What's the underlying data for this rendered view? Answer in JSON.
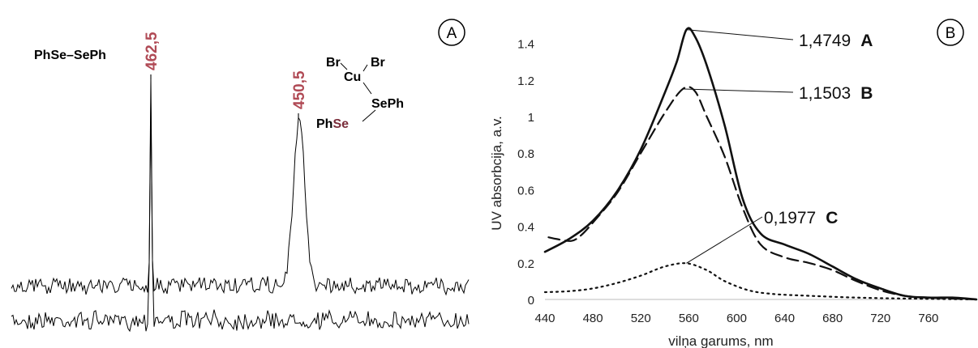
{
  "chart_data": [
    {
      "type": "line",
      "panel_label": "A",
      "title": "",
      "xlabel": "",
      "ylabel": "",
      "peaks": [
        {
          "value_label": "462,5",
          "compound": "PhSe–SePh"
        },
        {
          "value_label": "450,5"
        }
      ],
      "complex": {
        "br1": "Br",
        "br2": "Br",
        "cu": "Cu",
        "seph": "SePh",
        "phse_ph": "Ph",
        "phse_se": "Se"
      },
      "series": [
        {
          "name": "",
          "shape": "noisy spectrum with narrow spike at 462,5"
        },
        {
          "name": "",
          "shape": "noisy spectrum with broad peak at 450,5"
        }
      ]
    },
    {
      "type": "line",
      "panel_label": "B",
      "title": "",
      "xlabel": "vilņa garums, nm",
      "ylabel": "UV absorbcija, a.v.",
      "xlim": [
        440,
        800
      ],
      "ylim": [
        0,
        1.5
      ],
      "x_ticks": [
        "440",
        "480",
        "520",
        "560",
        "600",
        "640",
        "680",
        "720",
        "760"
      ],
      "y_ticks": [
        "0",
        "0.2",
        "0.4",
        "0.6",
        "0.8",
        "1",
        "1.2",
        "1.4"
      ],
      "series": [
        {
          "name": "A",
          "style": "solid",
          "peak_label": "1,4749",
          "x": [
            440,
            460,
            480,
            500,
            520,
            540,
            550,
            558,
            565,
            575,
            590,
            605,
            620,
            640,
            660,
            680,
            700,
            720,
            740,
            760,
            780,
            800
          ],
          "y": [
            0.26,
            0.33,
            0.43,
            0.59,
            0.82,
            1.13,
            1.3,
            1.4749,
            1.44,
            1.28,
            0.95,
            0.55,
            0.36,
            0.3,
            0.25,
            0.18,
            0.11,
            0.06,
            0.02,
            0.01,
            0.01,
            0.0
          ]
        },
        {
          "name": "B",
          "style": "dashed",
          "peak_label": "1,1503",
          "x": [
            443,
            450,
            462,
            470,
            480,
            500,
            520,
            540,
            555,
            565,
            575,
            590,
            605,
            620,
            640,
            660,
            680,
            700,
            720,
            740,
            760,
            800
          ],
          "y": [
            0.34,
            0.33,
            0.32,
            0.35,
            0.42,
            0.58,
            0.8,
            1.02,
            1.1503,
            1.14,
            1.0,
            0.78,
            0.5,
            0.3,
            0.23,
            0.2,
            0.16,
            0.1,
            0.05,
            0.02,
            0.01,
            0.0
          ]
        },
        {
          "name": "C",
          "style": "dotted",
          "peak_label": "0,1977",
          "x": [
            440,
            460,
            480,
            500,
            520,
            540,
            558,
            575,
            590,
            610,
            630,
            660,
            700,
            740,
            800
          ],
          "y": [
            0.04,
            0.045,
            0.06,
            0.09,
            0.13,
            0.18,
            0.1977,
            0.16,
            0.1,
            0.05,
            0.03,
            0.02,
            0.01,
            0.005,
            0.0
          ]
        }
      ]
    }
  ]
}
